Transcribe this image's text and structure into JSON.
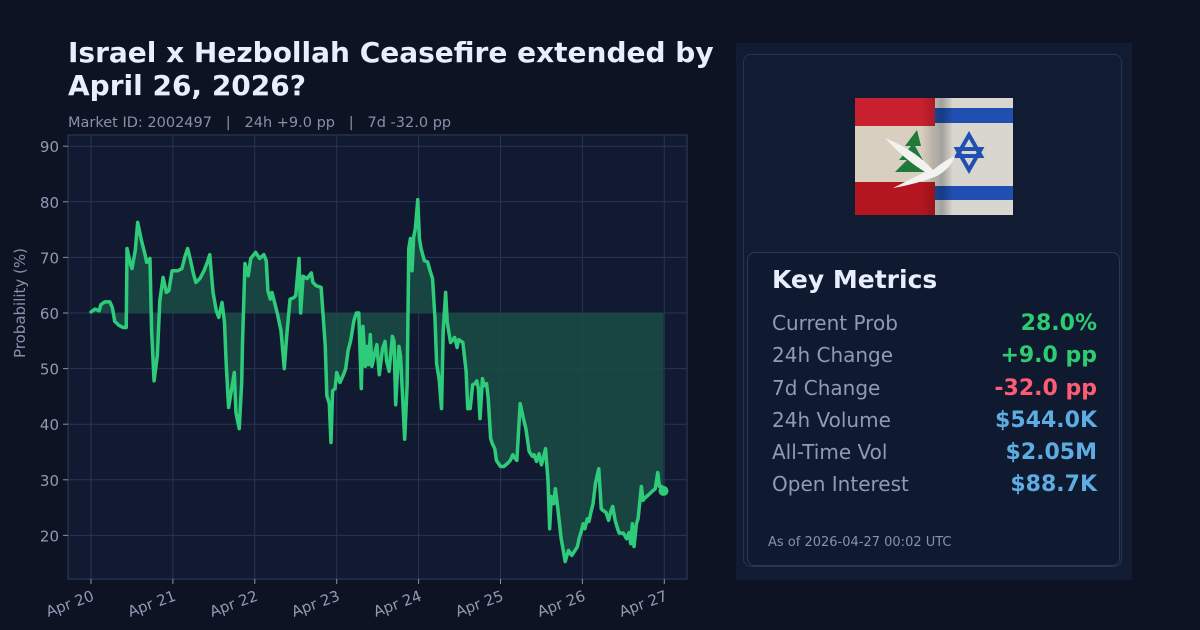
{
  "header": {
    "title": "Israel x Hezbollah Ceasefire extended by April 26, 2026?",
    "subtitle": "Market ID: 2002497   |   24h +9.0 pp   |   7d -32.0 pp"
  },
  "panel": {
    "image_alt": "Lebanon and Israel flags with white dove",
    "metrics_title": "Key Metrics",
    "metrics": [
      {
        "label": "Current Prob",
        "value": "28.0%",
        "color": "#2ecc71"
      },
      {
        "label": "24h Change",
        "value": "+9.0 pp",
        "color": "#2ecc71"
      },
      {
        "label": "7d Change",
        "value": "-32.0 pp",
        "color": "#ff5c74"
      },
      {
        "label": "24h Volume",
        "value": "$544.0K",
        "color": "#5dade2"
      },
      {
        "label": "All-Time Vol",
        "value": "$2.05M",
        "color": "#5dade2"
      },
      {
        "label": "Open Interest",
        "value": "$88.7K",
        "color": "#5dade2"
      }
    ],
    "as_of": "As of 2026-04-27 00:02 UTC"
  },
  "chart_data": {
    "type": "line",
    "title": "Israel x Hezbollah Ceasefire extended by April 26, 2026?",
    "xlabel": "",
    "ylabel": "Probability (%)",
    "ylim": [
      12,
      92
    ],
    "yticks": [
      20,
      30,
      40,
      50,
      60,
      70,
      80,
      90
    ],
    "xticks": [
      "Apr 20",
      "Apr 21",
      "Apr 22",
      "Apr 23",
      "Apr 24",
      "Apr 25",
      "Apr 26",
      "Apr 27"
    ],
    "grid": true,
    "baseline": 60,
    "fill_between_baseline": true,
    "line_color": "#2ecc7a",
    "fill_color": "#1a4a45",
    "series": [
      {
        "name": "Probability",
        "x_days_from_apr20": [
          0,
          0.05,
          0.1,
          0.12,
          0.17,
          0.23,
          0.26,
          0.29,
          0.34,
          0.39,
          0.43,
          0.44,
          0.48,
          0.5,
          0.54,
          0.57,
          0.61,
          0.66,
          0.68,
          0.72,
          0.74,
          0.77,
          0.81,
          0.84,
          0.88,
          0.92,
          0.95,
          0.99,
          1.06,
          1.11,
          1.15,
          1.18,
          1.21,
          1.25,
          1.28,
          1.33,
          1.38,
          1.42,
          1.45,
          1.49,
          1.53,
          1.56,
          1.6,
          1.63,
          1.65,
          1.68,
          1.72,
          1.75,
          1.77,
          1.81,
          1.84,
          1.85,
          1.88,
          1.92,
          1.95,
          2.01,
          2.06,
          2.11,
          2.14,
          2.16,
          2.19,
          2.21,
          2.25,
          2.28,
          2.32,
          2.36,
          2.39,
          2.43,
          2.47,
          2.5,
          2.54,
          2.56,
          2.59,
          2.64,
          2.69,
          2.71,
          2.75,
          2.81,
          2.86,
          2.88,
          2.91,
          2.93,
          2.95,
          2.98,
          3.0,
          3.04,
          3.08,
          3.11,
          3.14,
          3.17,
          3.21,
          3.24,
          3.27,
          3.3,
          3.32,
          3.35,
          3.37,
          3.39,
          3.41,
          3.43,
          3.47,
          3.49,
          3.52,
          3.56,
          3.59,
          3.61,
          3.64,
          3.68,
          3.7,
          3.72,
          3.76,
          3.78,
          3.83,
          3.86,
          3.88,
          3.9,
          3.92,
          3.94,
          3.96,
          3.99,
          4.01,
          4.03,
          4.07,
          4.11,
          4.14,
          4.17,
          4.2,
          4.22,
          4.25,
          4.28,
          4.3,
          4.33,
          4.35,
          4.39,
          4.41,
          4.44,
          4.47,
          4.49,
          4.54,
          4.58,
          4.6,
          4.63,
          4.66,
          4.69,
          4.71,
          4.73,
          4.75,
          4.78,
          4.8,
          4.83,
          4.85,
          4.88,
          4.9,
          4.93,
          4.95,
          5.0,
          5.04,
          5.09,
          5.12,
          5.15,
          5.18,
          5.2,
          5.24,
          5.28,
          5.31,
          5.35,
          5.39,
          5.41,
          5.44,
          5.47,
          5.5,
          5.52,
          5.55,
          5.58,
          5.6,
          5.62,
          5.65,
          5.67,
          5.7,
          5.74,
          5.79,
          5.83,
          5.87,
          5.91,
          5.94,
          5.96,
          5.98,
          6.01,
          6.03,
          6.06,
          6.08,
          6.1,
          6.13,
          6.16,
          6.2,
          6.23,
          6.25,
          6.29,
          6.32,
          6.35,
          6.37,
          6.4,
          6.43,
          6.45,
          6.5,
          6.54,
          6.57,
          6.59,
          6.61,
          6.63,
          6.66,
          6.68,
          6.72,
          6.74,
          6.76,
          6.8,
          6.85,
          6.89,
          6.92,
          6.94,
          6.97,
          6.99
        ],
        "values": [
          60.2,
          60.7,
          60.4,
          61.5,
          62.0,
          62.0,
          61.0,
          58.5,
          57.8,
          57.4,
          57.4,
          71.6,
          68.9,
          68.0,
          71.2,
          76.3,
          73.4,
          70.5,
          69.1,
          69.8,
          56.8,
          47.8,
          52.3,
          62.2,
          66.4,
          63.7,
          64.0,
          67.6,
          67.6,
          68.0,
          70.3,
          71.6,
          69.8,
          67.1,
          65.5,
          66.2,
          67.6,
          69.1,
          70.5,
          63.7,
          60.4,
          59.2,
          61.9,
          58.3,
          51.1,
          43.0,
          46.6,
          49.3,
          42.1,
          39.2,
          47.5,
          54.7,
          68.9,
          66.7,
          69.8,
          70.9,
          69.8,
          70.5,
          69.4,
          64.0,
          62.5,
          63.7,
          61.4,
          59.6,
          56.8,
          50.0,
          55.9,
          62.5,
          62.7,
          63.1,
          69.8,
          60.0,
          66.6,
          66.2,
          67.2,
          65.5,
          64.9,
          64.6,
          54.1,
          45.1,
          43.7,
          36.7,
          46.0,
          46.4,
          49.3,
          47.5,
          48.8,
          50.0,
          53.3,
          55.0,
          58.6,
          60.0,
          60.0,
          46.4,
          57.6,
          50.4,
          54.0,
          50.7,
          56.1,
          50.4,
          53.1,
          54.3,
          48.9,
          53.6,
          54.9,
          51.3,
          49.5,
          55.8,
          54.9,
          43.5,
          54.0,
          52.2,
          37.3,
          47.1,
          71.6,
          73.4,
          67.6,
          73.7,
          75.1,
          80.4,
          73.4,
          71.6,
          69.4,
          69.2,
          67.6,
          66.2,
          59.0,
          50.9,
          48.2,
          42.8,
          56.6,
          63.7,
          58.3,
          54.7,
          55.0,
          55.6,
          53.8,
          55.2,
          54.7,
          49.6,
          42.8,
          42.8,
          47.1,
          47.3,
          47.8,
          46.4,
          41.0,
          48.2,
          46.9,
          47.3,
          44.6,
          37.4,
          36.5,
          35.6,
          33.5,
          32.4,
          32.4,
          33.0,
          33.5,
          34.5,
          33.8,
          33.5,
          43.7,
          41.0,
          39.2,
          35.1,
          34.2,
          34.5,
          33.3,
          34.7,
          32.7,
          33.8,
          35.6,
          29.9,
          21.2,
          27.0,
          25.7,
          28.4,
          24.8,
          19.5,
          15.3,
          17.3,
          16.4,
          17.3,
          18.0,
          19.5,
          20.4,
          22.1,
          21.2,
          23.0,
          22.5,
          23.9,
          25.7,
          29.4,
          32.0,
          24.8,
          24.5,
          24.1,
          22.7,
          24.5,
          25.2,
          22.7,
          21.2,
          20.4,
          20.4,
          19.4,
          20.5,
          18.5,
          22.1,
          18.0,
          22.1,
          23.0,
          28.8,
          26.3,
          26.7,
          27.2,
          27.9,
          28.4,
          31.3,
          28.8,
          28.8,
          28.0
        ]
      }
    ]
  }
}
